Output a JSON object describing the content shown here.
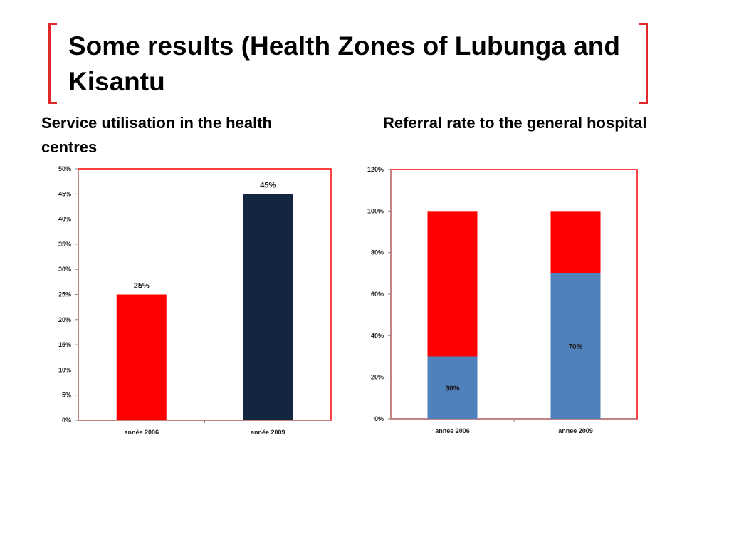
{
  "slide": {
    "title": "Some results (Health Zones of Lubunga and Kisantu",
    "left_heading": "Service utilisation in the health centres",
    "right_heading": "Referral rate to the general hospital"
  },
  "colors": {
    "accent": "#e0282a",
    "red": "#ff0000",
    "navy": "#14253f",
    "blue": "#4f81bd",
    "frame": "#ff0000"
  },
  "chart_data": [
    {
      "type": "bar",
      "categories": [
        "année 2006",
        "année 2009"
      ],
      "values": [
        25,
        45
      ],
      "data_labels": [
        "25%",
        "45%"
      ],
      "bar_colors": [
        "#ff0000",
        "#14253f"
      ],
      "y_ticks": [
        "0%",
        "5%",
        "10%",
        "15%",
        "20%",
        "25%",
        "30%",
        "35%",
        "40%",
        "45%",
        "50%"
      ],
      "ylim": [
        0,
        50
      ],
      "grid": false
    },
    {
      "type": "bar",
      "stacked": true,
      "categories": [
        "année 2006",
        "année 2009"
      ],
      "series": [
        {
          "values": [
            30,
            70
          ],
          "color": "#4f81bd",
          "data_labels": [
            "30%",
            "70%"
          ]
        },
        {
          "values": [
            70,
            30
          ],
          "color": "#ff0000"
        }
      ],
      "y_ticks": [
        "0%",
        "20%",
        "40%",
        "60%",
        "80%",
        "100%",
        "120%"
      ],
      "ylim": [
        0,
        120
      ],
      "grid": false
    }
  ]
}
